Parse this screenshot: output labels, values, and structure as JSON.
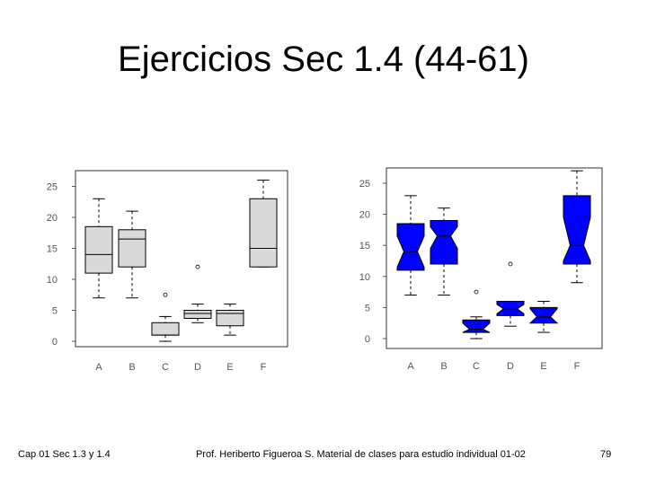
{
  "slide": {
    "title": "Ejercicios  Sec 1.4 (44-61)",
    "footer_left": "Cap 01 Sec 1.3  y 1.4",
    "footer_center": "Prof. Heriberto Figueroa S. Material de clases para estudio individual 01-02",
    "page_number": "79"
  },
  "chart_data": [
    {
      "type": "boxplot",
      "notched": false,
      "fill_color": "#d9d9d9",
      "categories": [
        "A",
        "B",
        "C",
        "D",
        "E",
        "F"
      ],
      "yticks": [
        "0",
        "5",
        "10",
        "15",
        "20",
        "25"
      ],
      "ylim": [
        0,
        26
      ],
      "boxes": [
        {
          "category": "A",
          "whisker_low": 7,
          "q1": 11,
          "median": 14,
          "q3": 18.5,
          "whisker_high": 23,
          "outliers": []
        },
        {
          "category": "B",
          "whisker_low": 7,
          "q1": 12,
          "median": 16.5,
          "q3": 18,
          "whisker_high": 21,
          "outliers": []
        },
        {
          "category": "C",
          "whisker_low": 0,
          "q1": 1,
          "median": 1,
          "q3": 3,
          "whisker_high": 4,
          "outliers": [
            7.5
          ]
        },
        {
          "category": "D",
          "whisker_low": 3,
          "q1": 3.7,
          "median": 4.5,
          "q3": 5,
          "whisker_high": 6,
          "outliers": [
            12
          ]
        },
        {
          "category": "E",
          "whisker_low": 1,
          "q1": 2.5,
          "median": 4.5,
          "q3": 5,
          "whisker_high": 6,
          "outliers": []
        },
        {
          "category": "F",
          "whisker_low": 12,
          "q1": 12,
          "median": 15,
          "q3": 23,
          "whisker_high": 26,
          "outliers": []
        }
      ]
    },
    {
      "type": "boxplot",
      "notched": true,
      "fill_color": "#0000ff",
      "categories": [
        "A",
        "B",
        "C",
        "D",
        "E",
        "F"
      ],
      "yticks": [
        "0",
        "5",
        "10",
        "15",
        "20",
        "25"
      ],
      "ylim": [
        0,
        26
      ],
      "boxes": [
        {
          "category": "A",
          "whisker_low": 7,
          "q1": 11,
          "median": 14,
          "q3": 18.5,
          "whisker_high": 23,
          "notch": [
            11.5,
            16.5
          ],
          "outliers": []
        },
        {
          "category": "B",
          "whisker_low": 7,
          "q1": 12,
          "median": 16.5,
          "q3": 19,
          "whisker_high": 21,
          "notch": [
            14.5,
            18
          ],
          "outliers": []
        },
        {
          "category": "C",
          "whisker_low": 0,
          "q1": 1,
          "median": 1.5,
          "q3": 3,
          "whisker_high": 3.5,
          "notch": [
            1,
            2.5
          ],
          "outliers": [
            7.5
          ]
        },
        {
          "category": "D",
          "whisker_low": 2,
          "q1": 3.7,
          "median": 4.8,
          "q3": 6,
          "whisker_high": 6,
          "notch": [
            4,
            5.5
          ],
          "outliers": [
            12
          ]
        },
        {
          "category": "E",
          "whisker_low": 1,
          "q1": 2.5,
          "median": 3.5,
          "q3": 5,
          "whisker_high": 6,
          "notch": [
            2.5,
            4.8
          ],
          "outliers": []
        },
        {
          "category": "F",
          "whisker_low": 9,
          "q1": 12,
          "median": 15,
          "q3": 23,
          "whisker_high": 27,
          "notch": [
            12.5,
            19.5
          ],
          "outliers": []
        }
      ]
    }
  ]
}
